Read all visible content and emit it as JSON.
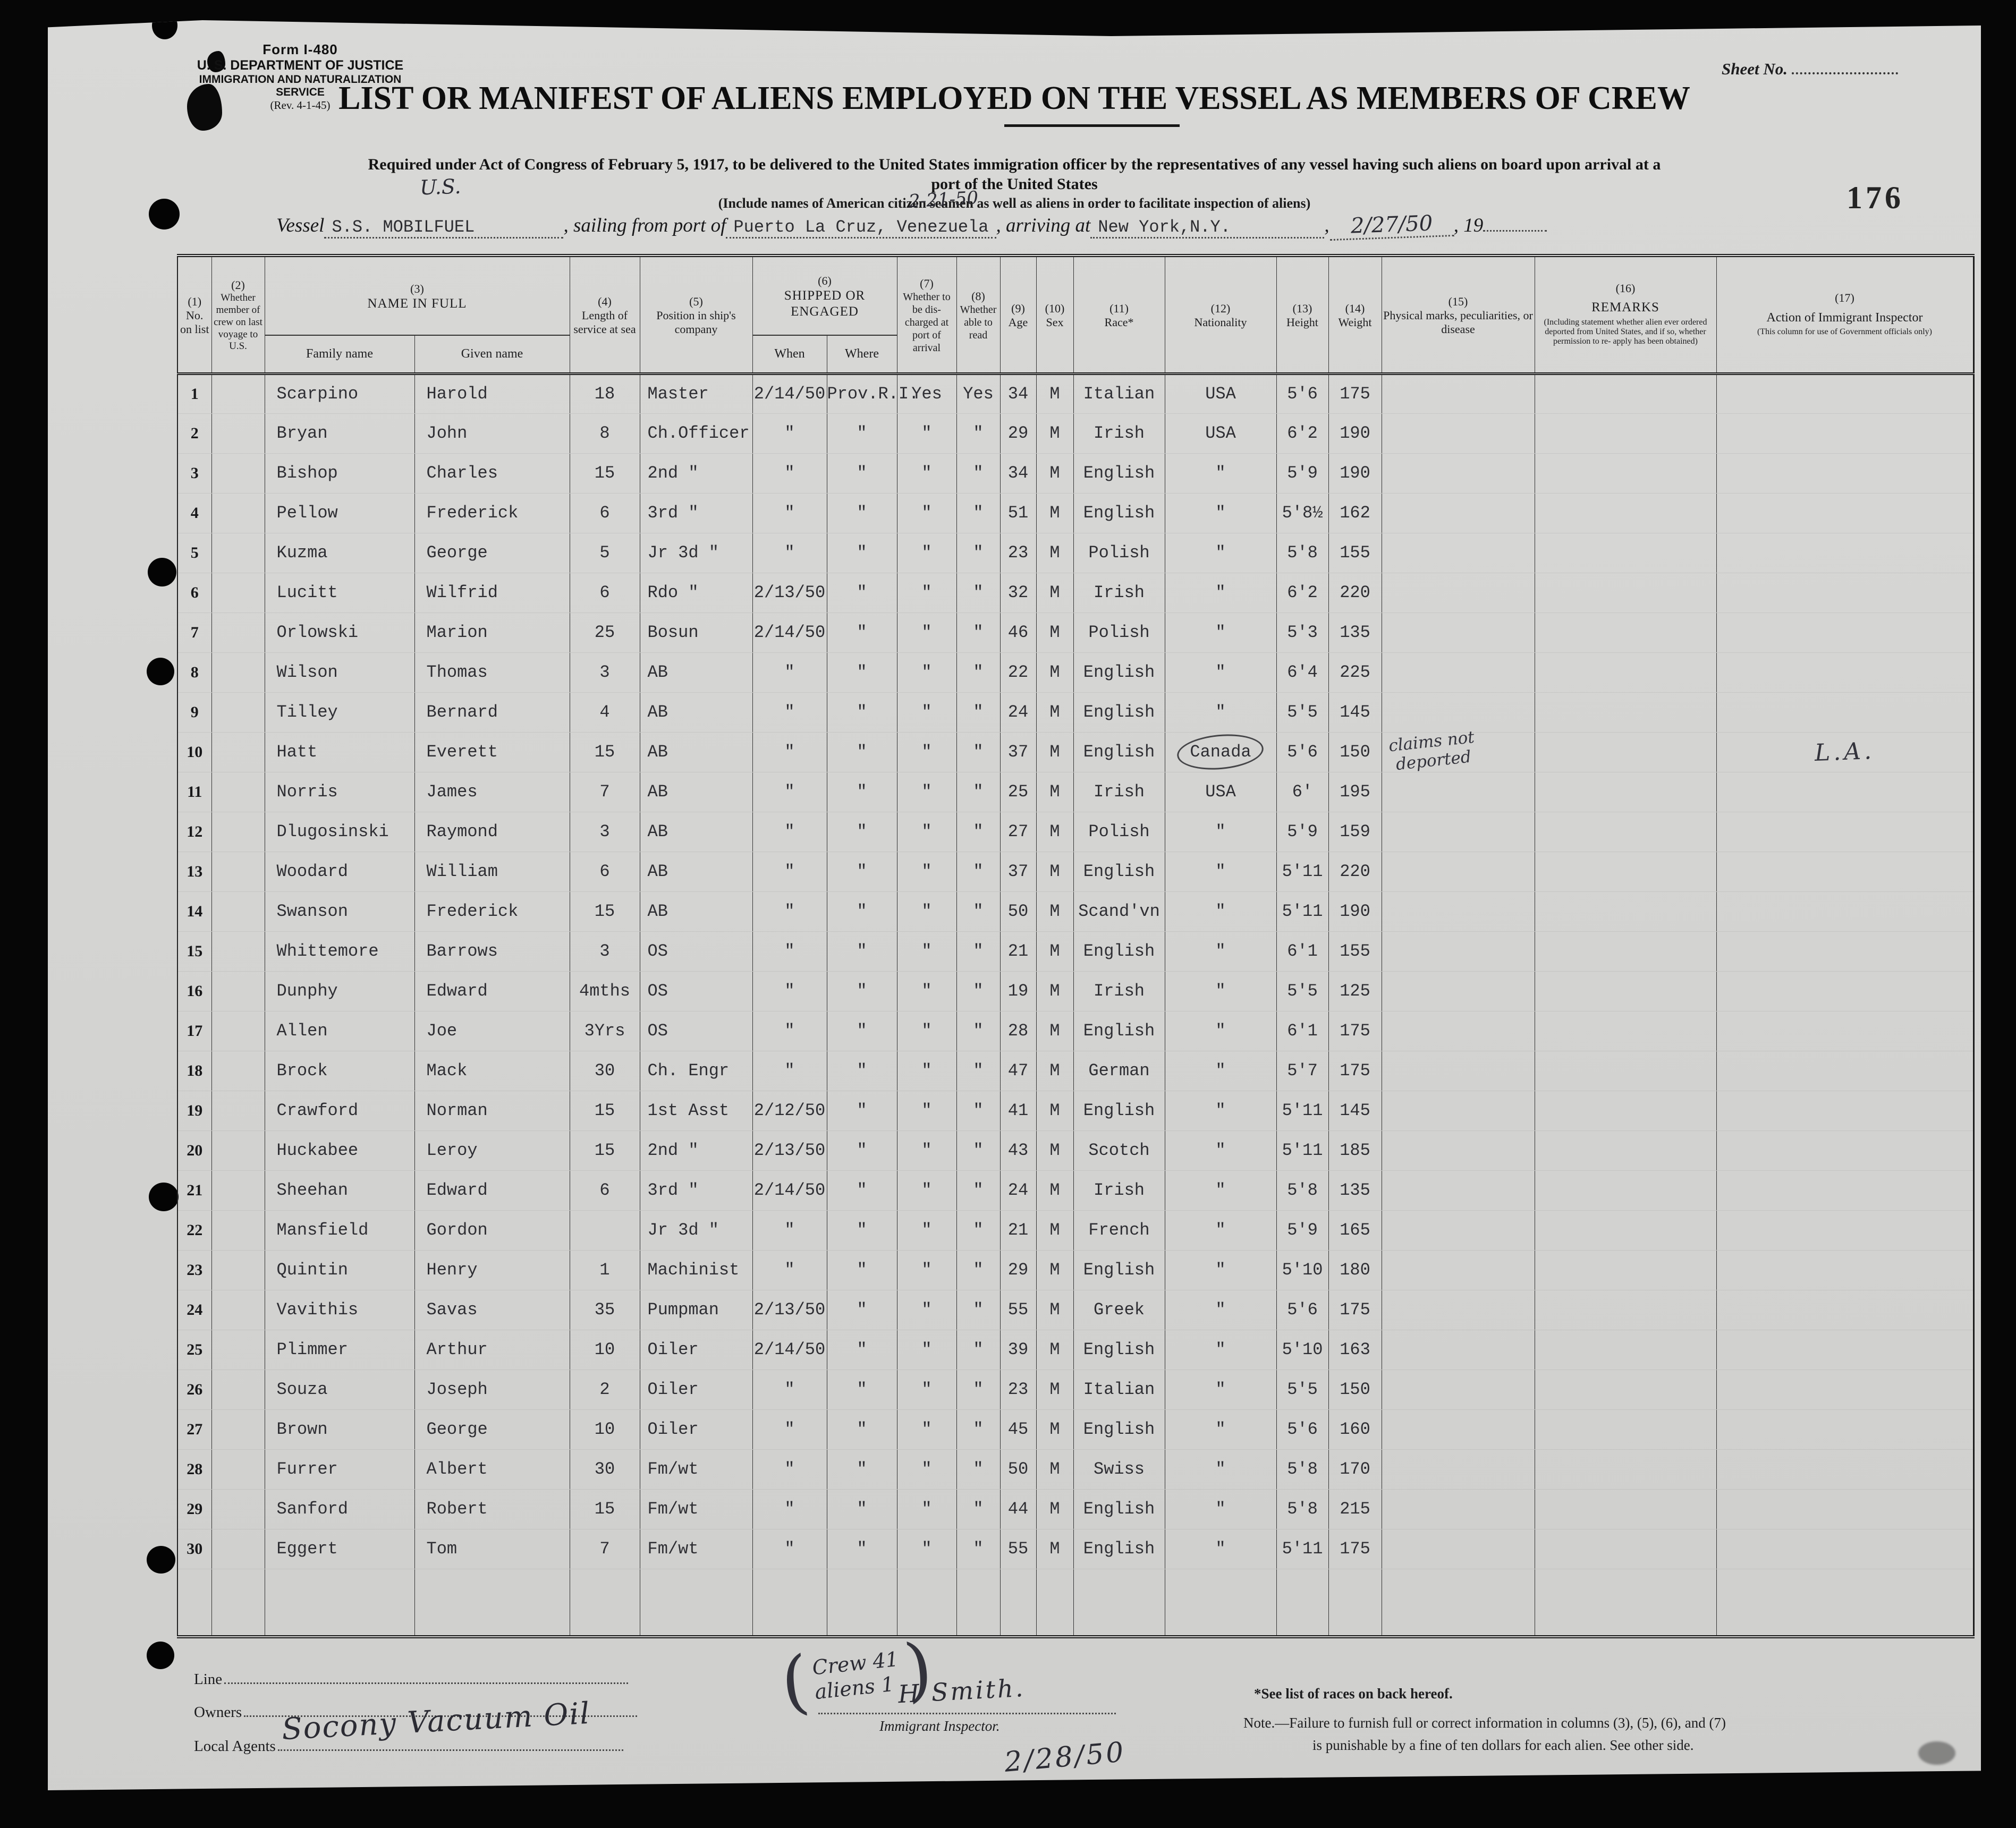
{
  "form": {
    "form_number": "Form I-480",
    "agency_line1": "U. S. DEPARTMENT OF JUSTICE",
    "agency_line2": "IMMIGRATION AND NATURALIZATION SERVICE",
    "revision": "(Rev. 4-1-45)",
    "sheet_no_label": "Sheet No.",
    "page_stamp": "176"
  },
  "title": "LIST OR MANIFEST OF ALIENS EMPLOYED ON THE VESSEL AS MEMBERS OF CREW",
  "subtitle_line1": "Required under Act of Congress of February 5, 1917, to be delivered to the United States immigration officer by the representatives of any vessel having such aliens on board upon arrival at a",
  "subtitle_line2": "port of the United States",
  "subtitle_line3": "(Include names of American citizen seamen as well as aliens in order to facilitate inspection of aliens)",
  "vessel_line": {
    "vessel_label": "Vessel",
    "vessel_name": "S.S. MOBILFUEL",
    "sailing_label": ", sailing from port of",
    "port": "Puerto La Cruz, Venezuela",
    "arriving_label": ", arriving at",
    "arrival_port": "New York,N.Y.",
    "comma": ",",
    "arrival_date_hw": "2/27/50",
    "year_label": ", 19",
    "hw_us": "U.S.",
    "hw_date": "2-21-50"
  },
  "table": {
    "headers": {
      "c1": {
        "num": "(1)",
        "label": "No. on list"
      },
      "c2": {
        "num": "(2)",
        "label": "Whether member of crew on last voyage to U.S."
      },
      "c3": {
        "num": "(3)",
        "label": "NAME IN FULL",
        "sub_family": "Family name",
        "sub_given": "Given name"
      },
      "c4": {
        "num": "(4)",
        "label": "Length of service at sea"
      },
      "c5": {
        "num": "(5)",
        "label": "Position in ship's company"
      },
      "c6": {
        "num": "(6)",
        "label": "SHIPPED OR ENGAGED",
        "sub_when": "When",
        "sub_where": "Where"
      },
      "c7": {
        "num": "(7)",
        "label": "Whether to be dis- charged at port of arrival"
      },
      "c8": {
        "num": "(8)",
        "label": "Whether able to read"
      },
      "c9": {
        "num": "(9)",
        "label": "Age"
      },
      "c10": {
        "num": "(10)",
        "label": "Sex"
      },
      "c11": {
        "num": "(11)",
        "label": "Race*"
      },
      "c12": {
        "num": "(12)",
        "label": "Nationality"
      },
      "c13": {
        "num": "(13)",
        "label": "Height"
      },
      "c14": {
        "num": "(14)",
        "label": "Weight"
      },
      "c15": {
        "num": "(15)",
        "label": "Physical marks, peculiarities, or disease"
      },
      "c16": {
        "num": "(16)",
        "label": "REMARKS",
        "note": "(Including statement whether alien ever ordered deported from United States, and if so, whether permission to re- apply has been obtained)"
      },
      "c17": {
        "num": "(17)",
        "label": "Action of Immigrant Inspector",
        "note": "(This column for use of Government officials only)"
      }
    },
    "row_fields": [
      "no",
      "crew",
      "family",
      "given",
      "service",
      "position",
      "when",
      "where",
      "discharge",
      "read",
      "age",
      "sex",
      "race",
      "nationality",
      "height",
      "weight",
      "marks",
      "remarks",
      "action"
    ],
    "rows": [
      {
        "no": "1",
        "family": "Scarpino",
        "given": "Harold",
        "service": "18",
        "position": "Master",
        "when": "2/14/50",
        "where": "Prov.R.I.",
        "discharge": "Yes",
        "read": "Yes",
        "age": "34",
        "sex": "M",
        "race": "Italian",
        "nationality": "USA",
        "height": "5'6",
        "weight": "175"
      },
      {
        "no": "2",
        "family": "Bryan",
        "given": "John",
        "service": "8",
        "position": "Ch.Officer",
        "when": "\"",
        "where": "\"",
        "discharge": "\"",
        "read": "\"",
        "age": "29",
        "sex": "M",
        "race": "Irish",
        "nationality": "USA",
        "height": "6'2",
        "weight": "190"
      },
      {
        "no": "3",
        "family": "Bishop",
        "given": "Charles",
        "service": "15",
        "position": "2nd \"",
        "when": "\"",
        "where": "\"",
        "discharge": "\"",
        "read": "\"",
        "age": "34",
        "sex": "M",
        "race": "English",
        "nationality": "\"",
        "height": "5'9",
        "weight": "190"
      },
      {
        "no": "4",
        "family": "Pellow",
        "given": "Frederick",
        "service": "6",
        "position": "3rd \"",
        "when": "\"",
        "where": "\"",
        "discharge": "\"",
        "read": "\"",
        "age": "51",
        "sex": "M",
        "race": "English",
        "nationality": "\"",
        "height": "5'8½",
        "weight": "162"
      },
      {
        "no": "5",
        "family": "Kuzma",
        "given": "George",
        "service": "5",
        "position": "Jr 3d \"",
        "when": "\"",
        "where": "\"",
        "discharge": "\"",
        "read": "\"",
        "age": "23",
        "sex": "M",
        "race": "Polish",
        "nationality": "\"",
        "height": "5'8",
        "weight": "155"
      },
      {
        "no": "6",
        "family": "Lucitt",
        "given": "Wilfrid",
        "service": "6",
        "position": "Rdo  \"",
        "when": "2/13/50",
        "where": "\"",
        "discharge": "\"",
        "read": "\"",
        "age": "32",
        "sex": "M",
        "race": "Irish",
        "nationality": "\"",
        "height": "6'2",
        "weight": "220"
      },
      {
        "no": "7",
        "family": "Orlowski",
        "given": "Marion",
        "service": "25",
        "position": "Bosun",
        "when": "2/14/50",
        "where": "\"",
        "discharge": "\"",
        "read": "\"",
        "age": "46",
        "sex": "M",
        "race": "Polish",
        "nationality": "\"",
        "height": "5'3",
        "weight": "135"
      },
      {
        "no": "8",
        "family": "Wilson",
        "given": "Thomas",
        "service": "3",
        "position": "AB",
        "when": "\"",
        "where": "\"",
        "discharge": "\"",
        "read": "\"",
        "age": "22",
        "sex": "M",
        "race": "English",
        "nationality": "\"",
        "height": "6'4",
        "weight": "225"
      },
      {
        "no": "9",
        "family": "Tilley",
        "given": "Bernard",
        "service": "4",
        "position": "AB",
        "when": "\"",
        "where": "\"",
        "discharge": "\"",
        "read": "\"",
        "age": "24",
        "sex": "M",
        "race": "English",
        "nationality": "\"",
        "height": "5'5",
        "weight": "145"
      },
      {
        "no": "10",
        "family": "Hatt",
        "given": "Everett",
        "service": "15",
        "position": "AB",
        "when": "\"",
        "where": "\"",
        "discharge": "\"",
        "read": "\"",
        "age": "37",
        "sex": "M",
        "race": "English",
        "nationality": "Canada",
        "nationality_circled": true,
        "height": "5'6",
        "weight": "150",
        "marks": "claims not\ndeported",
        "marks_hw": true,
        "action": "L.A.",
        "action_hw": true
      },
      {
        "no": "11",
        "family": "Norris",
        "given": "James",
        "service": "7",
        "position": "AB",
        "when": "\"",
        "where": "\"",
        "discharge": "\"",
        "read": "\"",
        "age": "25",
        "sex": "M",
        "race": "Irish",
        "nationality": "USA",
        "height": "6'",
        "weight": "195"
      },
      {
        "no": "12",
        "family": "Dlugosinski",
        "given": "Raymond",
        "service": "3",
        "position": "AB",
        "when": "\"",
        "where": "\"",
        "discharge": "\"",
        "read": "\"",
        "age": "27",
        "sex": "M",
        "race": "Polish",
        "nationality": "\"",
        "height": "5'9",
        "weight": "159"
      },
      {
        "no": "13",
        "family": "Woodard",
        "given": "William",
        "service": "6",
        "position": "AB",
        "when": "\"",
        "where": "\"",
        "discharge": "\"",
        "read": "\"",
        "age": "37",
        "sex": "M",
        "race": "English",
        "nationality": "\"",
        "height": "5'11",
        "weight": "220"
      },
      {
        "no": "14",
        "family": "Swanson",
        "given": "Frederick",
        "service": "15",
        "position": "AB",
        "when": "\"",
        "where": "\"",
        "discharge": "\"",
        "read": "\"",
        "age": "50",
        "sex": "M",
        "race": "Scand'vn",
        "nationality": "\"",
        "height": "5'11",
        "weight": "190"
      },
      {
        "no": "15",
        "family": "Whittemore",
        "given": "Barrows",
        "service": "3",
        "position": "OS",
        "when": "\"",
        "where": "\"",
        "discharge": "\"",
        "read": "\"",
        "age": "21",
        "sex": "M",
        "race": "English",
        "nationality": "\"",
        "height": "6'1",
        "weight": "155"
      },
      {
        "no": "16",
        "family": "Dunphy",
        "given": "Edward",
        "service": "4mths",
        "position": "OS",
        "when": "\"",
        "where": "\"",
        "discharge": "\"",
        "read": "\"",
        "age": "19",
        "sex": "M",
        "race": "Irish",
        "nationality": "\"",
        "height": "5'5",
        "weight": "125"
      },
      {
        "no": "17",
        "family": "Allen",
        "given": "Joe",
        "service": "3Yrs",
        "position": "OS",
        "when": "\"",
        "where": "\"",
        "discharge": "\"",
        "read": "\"",
        "age": "28",
        "sex": "M",
        "race": "English",
        "nationality": "\"",
        "height": "6'1",
        "weight": "175"
      },
      {
        "no": "18",
        "family": "Brock",
        "given": "Mack",
        "service": "30",
        "position": "Ch.  Engr",
        "when": "\"",
        "where": "\"",
        "discharge": "\"",
        "read": "\"",
        "age": "47",
        "sex": "M",
        "race": "German",
        "nationality": "\"",
        "height": "5'7",
        "weight": "175"
      },
      {
        "no": "19",
        "family": "Crawford",
        "given": "Norman",
        "service": "15",
        "position": "1st Asst",
        "when": "2/12/50",
        "where": "\"",
        "discharge": "\"",
        "read": "\"",
        "age": "41",
        "sex": "M",
        "race": "English",
        "nationality": "\"",
        "height": "5'11",
        "weight": "145"
      },
      {
        "no": "20",
        "family": "Huckabee",
        "given": "Leroy",
        "service": "15",
        "position": "2nd  \"",
        "when": "2/13/50",
        "where": "\"",
        "discharge": "\"",
        "read": "\"",
        "age": "43",
        "sex": "M",
        "race": "Scotch",
        "nationality": "\"",
        "height": "5'11",
        "weight": "185"
      },
      {
        "no": "21",
        "family": "Sheehan",
        "given": "Edward",
        "service": "6",
        "position": "3rd  \"",
        "when": "2/14/50",
        "where": "\"",
        "discharge": "\"",
        "read": "\"",
        "age": "24",
        "sex": "M",
        "race": "Irish",
        "nationality": "\"",
        "height": "5'8",
        "weight": "135"
      },
      {
        "no": "22",
        "family": "Mansfield",
        "given": "Gordon",
        "service": "",
        "position": "Jr 3d \"",
        "when": "\"",
        "where": "\"",
        "discharge": "\"",
        "read": "\"",
        "age": "21",
        "sex": "M",
        "race": "French",
        "nationality": "\"",
        "height": "5'9",
        "weight": "165"
      },
      {
        "no": "23",
        "family": "Quintin",
        "given": "Henry",
        "service": "1",
        "position": "Machinist",
        "when": "\"",
        "where": "\"",
        "discharge": "\"",
        "read": "\"",
        "age": "29",
        "sex": "M",
        "race": "English",
        "nationality": "\"",
        "height": "5'10",
        "weight": "180"
      },
      {
        "no": "24",
        "family": "Vavithis",
        "given": "Savas",
        "service": "35",
        "position": "Pumpman",
        "when": "2/13/50",
        "where": "\"",
        "discharge": "\"",
        "read": "\"",
        "age": "55",
        "sex": "M",
        "race": "Greek",
        "nationality": "\"",
        "height": "5'6",
        "weight": "175"
      },
      {
        "no": "25",
        "family": "Plimmer",
        "given": "Arthur",
        "service": "10",
        "position": "Oiler",
        "when": "2/14/50",
        "where": "\"",
        "discharge": "\"",
        "read": "\"",
        "age": "39",
        "sex": "M",
        "race": "English",
        "nationality": "\"",
        "height": "5'10",
        "weight": "163"
      },
      {
        "no": "26",
        "family": "Souza",
        "given": "Joseph",
        "service": "2",
        "position": "Oiler",
        "when": "\"",
        "where": "\"",
        "discharge": "\"",
        "read": "\"",
        "age": "23",
        "sex": "M",
        "race": "Italian",
        "nationality": "\"",
        "height": "5'5",
        "weight": "150"
      },
      {
        "no": "27",
        "family": "Brown",
        "given": "George",
        "service": "10",
        "position": "Oiler",
        "when": "\"",
        "where": "\"",
        "discharge": "\"",
        "read": "\"",
        "age": "45",
        "sex": "M",
        "race": "English",
        "nationality": "\"",
        "height": "5'6",
        "weight": "160"
      },
      {
        "no": "28",
        "family": "Furrer",
        "given": "Albert",
        "service": "30",
        "position": "Fm/wt",
        "when": "\"",
        "where": "\"",
        "discharge": "\"",
        "read": "\"",
        "age": "50",
        "sex": "M",
        "race": "Swiss",
        "nationality": "\"",
        "height": "5'8",
        "weight": "170"
      },
      {
        "no": "29",
        "family": "Sanford",
        "given": "Robert",
        "service": "15",
        "position": "Fm/wt",
        "when": "\"",
        "where": "\"",
        "discharge": "\"",
        "read": "\"",
        "age": "44",
        "sex": "M",
        "race": "English",
        "nationality": "\"",
        "height": "5'8",
        "weight": "215"
      },
      {
        "no": "30",
        "family": "Eggert",
        "given": "Tom",
        "service": "7",
        "position": "Fm/wt",
        "when": "\"",
        "where": "\"",
        "discharge": "\"",
        "read": "\"",
        "age": "55",
        "sex": "M",
        "race": "English",
        "nationality": "\"",
        "height": "5'11",
        "weight": "175"
      }
    ]
  },
  "footer": {
    "line_label": "Line",
    "owners_label": "Owners",
    "local_agents_label": "Local Agents",
    "local_agents_value_hw": "Socony Vacuum Oil",
    "tally_hw_line1": "Crew 41",
    "tally_hw_line2": "aliens 1",
    "inspector_signature_hw": "H Smith.",
    "inspector_label": "Immigrant Inspector.",
    "inspector_date_hw": "2/28/50",
    "note_races": "*See list of races on back hereof.",
    "note_line1": "Note.—Failure to furnish full or correct information in columns (3), (5), (6), and (7)",
    "note_line2": "is punishable by a fine of ten dollars for each alien.  See other side."
  }
}
